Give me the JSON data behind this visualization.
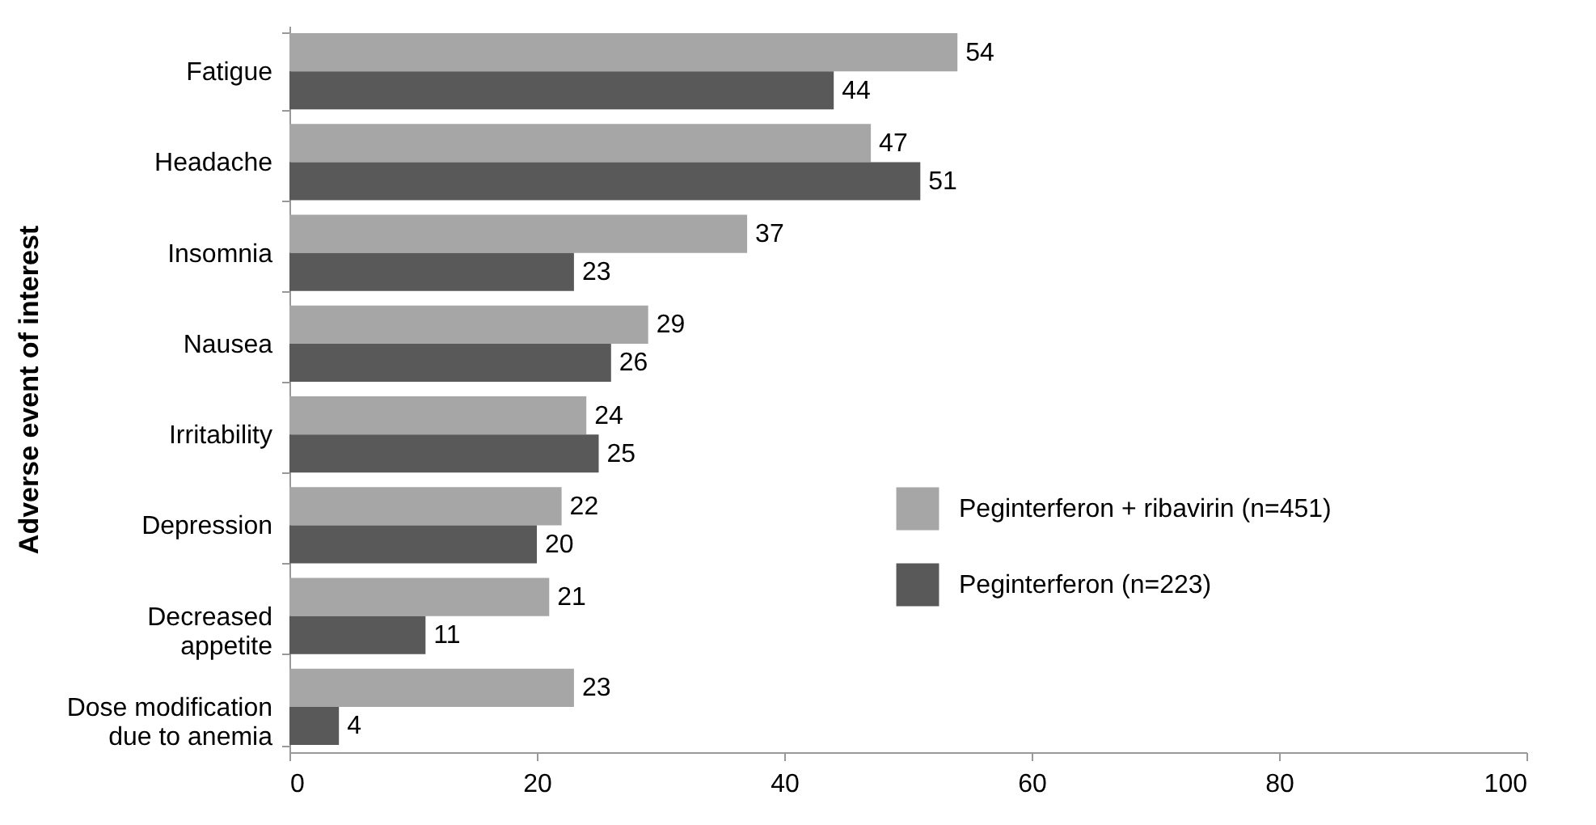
{
  "chart_data": {
    "type": "bar",
    "orientation": "horizontal",
    "ylabel": "Adverse event of interest",
    "categories": [
      "Fatigue",
      "Headache",
      "Insomnia",
      "Nausea",
      "Irritability",
      "Depression",
      "Decreased appetite",
      "Dose modification due to anemia"
    ],
    "series": [
      {
        "name": "Peginterferon + ribavirin (n=451)",
        "color": "#a6a6a6",
        "values": [
          54,
          47,
          37,
          29,
          24,
          22,
          21,
          23
        ]
      },
      {
        "name": "Peginterferon (n=223)",
        "color": "#595959",
        "values": [
          44,
          51,
          23,
          26,
          25,
          20,
          11,
          4
        ]
      }
    ],
    "xlim": [
      0,
      100
    ],
    "xticks": [
      0,
      20,
      40,
      60,
      80,
      100
    ],
    "data_labels": true,
    "legend": "right",
    "grid": false
  }
}
